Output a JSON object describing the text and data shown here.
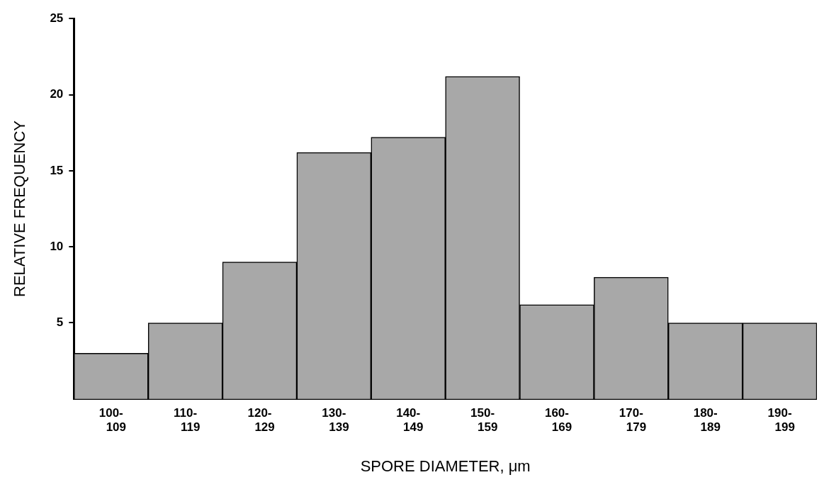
{
  "chart_data": {
    "type": "bar",
    "xlabel": "SPORE DIAMETER, μm",
    "ylabel": "RELATIVE FREQUENCY",
    "categories": [
      "100-109",
      "110-119",
      "120-129",
      "130-139",
      "140-149",
      "150-159",
      "160-169",
      "170-179",
      "180-189",
      "190-199"
    ],
    "values": [
      3,
      5,
      9,
      16.2,
      17.2,
      21.2,
      6.2,
      8,
      5,
      5
    ],
    "color": "#a8a8a8",
    "ylim": [
      0,
      25
    ],
    "yticks": [
      5,
      10,
      15,
      20,
      25
    ],
    "grid": false,
    "legend": false
  }
}
